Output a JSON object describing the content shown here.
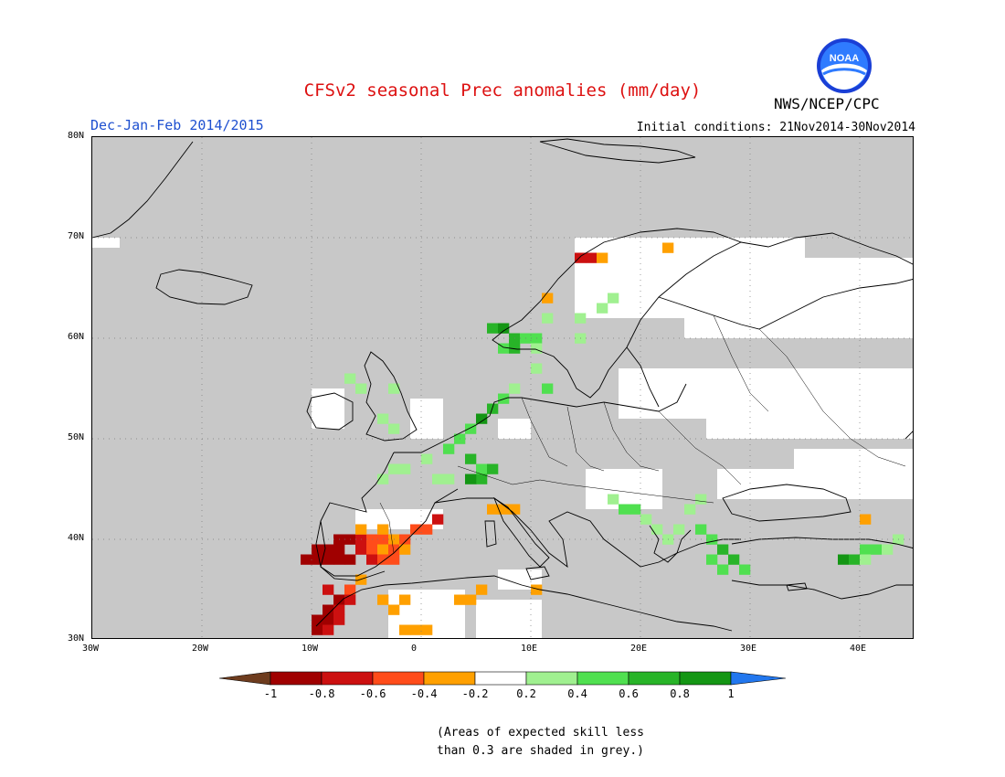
{
  "header": {
    "title": "CFSv2 seasonal Prec anomalies (mm/day)",
    "period": "Dec-Jan-Feb 2014/2015",
    "initial_conditions": "Initial conditions: 21Nov2014-30Nov2014",
    "agency": "NWS/NCEP/CPC",
    "logo_text": "NOAA"
  },
  "map": {
    "extent": {
      "lon_min": -30,
      "lon_max": 45,
      "lat_min": 30,
      "lat_max": 80
    },
    "lat_labels": [
      "80N",
      "70N",
      "60N",
      "50N",
      "40N",
      "30N"
    ],
    "lat_values": [
      80,
      70,
      60,
      50,
      40,
      30
    ],
    "lon_labels": [
      "30W",
      "20W",
      "10W",
      "0",
      "10E",
      "20E",
      "30E",
      "40E"
    ],
    "lon_values": [
      -30,
      -20,
      -10,
      0,
      10,
      20,
      30,
      40
    ],
    "background_color": "#c8c8c8",
    "anomaly_cells": [
      {
        "lon": -10.5,
        "lat": 38,
        "class": "-1"
      },
      {
        "lon": -9.5,
        "lat": 38,
        "class": "-1"
      },
      {
        "lon": -9.5,
        "lat": 39,
        "class": "-1"
      },
      {
        "lon": -8.5,
        "lat": 39,
        "class": "-1"
      },
      {
        "lon": -7.5,
        "lat": 39,
        "class": "-1"
      },
      {
        "lon": -8.5,
        "lat": 38,
        "class": "-1"
      },
      {
        "lon": -7.5,
        "lat": 38,
        "class": "-1"
      },
      {
        "lon": -6.5,
        "lat": 38,
        "class": "-1"
      },
      {
        "lon": -7.5,
        "lat": 40,
        "class": "-1"
      },
      {
        "lon": -6.5,
        "lat": 40,
        "class": "-1"
      },
      {
        "lon": -5.5,
        "lat": 39,
        "class": "-0.8"
      },
      {
        "lon": -5.5,
        "lat": 40,
        "class": "-0.8"
      },
      {
        "lon": -4.5,
        "lat": 40,
        "class": "-0.6"
      },
      {
        "lon": -3.5,
        "lat": 40,
        "class": "-0.6"
      },
      {
        "lon": -2.5,
        "lat": 40,
        "class": "-0.4"
      },
      {
        "lon": -1.5,
        "lat": 40,
        "class": "-0.6"
      },
      {
        "lon": -0.5,
        "lat": 41,
        "class": "-0.6"
      },
      {
        "lon": 0.5,
        "lat": 41,
        "class": "-0.6"
      },
      {
        "lon": 1.5,
        "lat": 42,
        "class": "-0.8"
      },
      {
        "lon": -4.5,
        "lat": 39,
        "class": "-0.6"
      },
      {
        "lon": -3.5,
        "lat": 39,
        "class": "-0.4"
      },
      {
        "lon": -2.5,
        "lat": 39,
        "class": "-0.6"
      },
      {
        "lon": -1.5,
        "lat": 39,
        "class": "-0.4"
      },
      {
        "lon": -4.5,
        "lat": 38,
        "class": "-0.8"
      },
      {
        "lon": -3.5,
        "lat": 38,
        "class": "-0.6"
      },
      {
        "lon": -2.5,
        "lat": 38,
        "class": "-0.6"
      },
      {
        "lon": -5.5,
        "lat": 41,
        "class": "-0.4"
      },
      {
        "lon": -3.5,
        "lat": 41,
        "class": "-0.4"
      },
      {
        "lon": -8.5,
        "lat": 35,
        "class": "-0.8"
      },
      {
        "lon": -7.5,
        "lat": 34,
        "class": "-1"
      },
      {
        "lon": -8.5,
        "lat": 33,
        "class": "-1"
      },
      {
        "lon": -7.5,
        "lat": 33,
        "class": "-0.8"
      },
      {
        "lon": -9.5,
        "lat": 32,
        "class": "-1"
      },
      {
        "lon": -8.5,
        "lat": 32,
        "class": "-1"
      },
      {
        "lon": -9.5,
        "lat": 31,
        "class": "-1"
      },
      {
        "lon": -8.5,
        "lat": 31,
        "class": "-0.8"
      },
      {
        "lon": -7.5,
        "lat": 32,
        "class": "-0.8"
      },
      {
        "lon": -6.5,
        "lat": 35,
        "class": "-0.6"
      },
      {
        "lon": -6.5,
        "lat": 34,
        "class": "-0.8"
      },
      {
        "lon": -5.5,
        "lat": 36,
        "class": "-0.4"
      },
      {
        "lon": -3.5,
        "lat": 34,
        "class": "-0.4"
      },
      {
        "lon": -2.5,
        "lat": 33,
        "class": "-0.4"
      },
      {
        "lon": -1.5,
        "lat": 34,
        "class": "-0.4"
      },
      {
        "lon": -1.5,
        "lat": 31,
        "class": "-0.4"
      },
      {
        "lon": -0.5,
        "lat": 31,
        "class": "-0.4"
      },
      {
        "lon": 0.5,
        "lat": 31,
        "class": "-0.4"
      },
      {
        "lon": 3.5,
        "lat": 34,
        "class": "-0.4"
      },
      {
        "lon": 4.5,
        "lat": 34,
        "class": "-0.4"
      },
      {
        "lon": 5.5,
        "lat": 35,
        "class": "-0.4"
      },
      {
        "lon": 6.5,
        "lat": 43,
        "class": "-0.4"
      },
      {
        "lon": 7.5,
        "lat": 43,
        "class": "-0.4"
      },
      {
        "lon": 8.5,
        "lat": 43,
        "class": "-0.4"
      },
      {
        "lon": 10.5,
        "lat": 35,
        "class": "-0.4"
      },
      {
        "lon": 14.5,
        "lat": 68,
        "class": "-0.8"
      },
      {
        "lon": 15.5,
        "lat": 68,
        "class": "-0.8"
      },
      {
        "lon": 16.5,
        "lat": 68,
        "class": "-0.4"
      },
      {
        "lon": 22.5,
        "lat": 69,
        "class": "-0.4"
      },
      {
        "lon": 11.5,
        "lat": 64,
        "class": "-0.4"
      },
      {
        "lon": 40.5,
        "lat": 42,
        "class": "-0.4"
      },
      {
        "lon": 6.5,
        "lat": 61,
        "class": "0.6"
      },
      {
        "lon": 7.5,
        "lat": 61,
        "class": "0.8"
      },
      {
        "lon": 8.5,
        "lat": 60,
        "class": "0.6"
      },
      {
        "lon": 7.5,
        "lat": 59,
        "class": "0.4"
      },
      {
        "lon": 8.5,
        "lat": 59,
        "class": "0.6"
      },
      {
        "lon": 9.5,
        "lat": 60,
        "class": "0.4"
      },
      {
        "lon": 10.5,
        "lat": 60,
        "class": "0.4"
      },
      {
        "lon": 10.5,
        "lat": 59,
        "class": "0.2"
      },
      {
        "lon": 11.5,
        "lat": 62,
        "class": "0.2"
      },
      {
        "lon": 14.5,
        "lat": 62,
        "class": "0.2"
      },
      {
        "lon": 16.5,
        "lat": 63,
        "class": "0.2"
      },
      {
        "lon": 17.5,
        "lat": 64,
        "class": "0.2"
      },
      {
        "lon": 14.5,
        "lat": 60,
        "class": "0.2"
      },
      {
        "lon": 10.5,
        "lat": 57,
        "class": "0.2"
      },
      {
        "lon": 11.5,
        "lat": 55,
        "class": "0.4"
      },
      {
        "lon": 8.5,
        "lat": 55,
        "class": "0.2"
      },
      {
        "lon": 7.5,
        "lat": 54,
        "class": "0.4"
      },
      {
        "lon": 6.5,
        "lat": 53,
        "class": "0.6"
      },
      {
        "lon": 5.5,
        "lat": 52,
        "class": "0.8"
      },
      {
        "lon": 4.5,
        "lat": 51,
        "class": "0.4"
      },
      {
        "lon": 3.5,
        "lat": 50,
        "class": "0.4"
      },
      {
        "lon": 2.5,
        "lat": 49,
        "class": "0.4"
      },
      {
        "lon": 4.5,
        "lat": 48,
        "class": "0.6"
      },
      {
        "lon": 5.5,
        "lat": 47,
        "class": "0.4"
      },
      {
        "lon": 6.5,
        "lat": 47,
        "class": "0.6"
      },
      {
        "lon": 5.5,
        "lat": 46,
        "class": "0.6"
      },
      {
        "lon": 4.5,
        "lat": 46,
        "class": "0.8"
      },
      {
        "lon": 0.5,
        "lat": 48,
        "class": "0.2"
      },
      {
        "lon": -1.5,
        "lat": 47,
        "class": "0.2"
      },
      {
        "lon": -2.5,
        "lat": 47,
        "class": "0.2"
      },
      {
        "lon": -3.5,
        "lat": 46,
        "class": "0.2"
      },
      {
        "lon": 1.5,
        "lat": 46,
        "class": "0.2"
      },
      {
        "lon": 2.5,
        "lat": 46,
        "class": "0.2"
      },
      {
        "lon": -5.5,
        "lat": 55,
        "class": "0.2"
      },
      {
        "lon": -3.5,
        "lat": 52,
        "class": "0.2"
      },
      {
        "lon": -2.5,
        "lat": 51,
        "class": "0.2"
      },
      {
        "lon": -2.5,
        "lat": 55,
        "class": "0.2"
      },
      {
        "lon": -6.5,
        "lat": 56,
        "class": "0.2"
      },
      {
        "lon": 18.5,
        "lat": 43,
        "class": "0.4"
      },
      {
        "lon": 19.5,
        "lat": 43,
        "class": "0.4"
      },
      {
        "lon": 17.5,
        "lat": 44,
        "class": "0.2"
      },
      {
        "lon": 20.5,
        "lat": 42,
        "class": "0.2"
      },
      {
        "lon": 21.5,
        "lat": 41,
        "class": "0.2"
      },
      {
        "lon": 22.5,
        "lat": 40,
        "class": "0.2"
      },
      {
        "lon": 26.5,
        "lat": 40,
        "class": "0.4"
      },
      {
        "lon": 27.5,
        "lat": 39,
        "class": "0.6"
      },
      {
        "lon": 28.5,
        "lat": 38,
        "class": "0.6"
      },
      {
        "lon": 29.5,
        "lat": 37,
        "class": "0.4"
      },
      {
        "lon": 27.5,
        "lat": 37,
        "class": "0.4"
      },
      {
        "lon": 26.5,
        "lat": 38,
        "class": "0.4"
      },
      {
        "lon": 25.5,
        "lat": 41,
        "class": "0.4"
      },
      {
        "lon": 23.5,
        "lat": 41,
        "class": "0.2"
      },
      {
        "lon": 24.5,
        "lat": 43,
        "class": "0.2"
      },
      {
        "lon": 25.5,
        "lat": 44,
        "class": "0.2"
      },
      {
        "lon": 38.5,
        "lat": 38,
        "class": "0.8"
      },
      {
        "lon": 39.5,
        "lat": 38,
        "class": "0.6"
      },
      {
        "lon": 40.5,
        "lat": 39,
        "class": "0.4"
      },
      {
        "lon": 41.5,
        "lat": 39,
        "class": "0.4"
      },
      {
        "lon": 42.5,
        "lat": 39,
        "class": "0.2"
      },
      {
        "lon": 43.5,
        "lat": 40,
        "class": "0.2"
      },
      {
        "lon": 40.5,
        "lat": 38,
        "class": "0.2"
      }
    ],
    "white_regions": [
      {
        "lon_min": -30,
        "lon_max": -27.5,
        "lat_min": 69,
        "lat_max": 70
      },
      {
        "lon_min": 14,
        "lon_max": 35,
        "lat_min": 62,
        "lat_max": 70
      },
      {
        "lon_min": 24,
        "lon_max": 45,
        "lat_min": 60,
        "lat_max": 68
      },
      {
        "lon_min": 26,
        "lon_max": 45,
        "lat_min": 50,
        "lat_max": 57
      },
      {
        "lon_min": 18,
        "lon_max": 26,
        "lat_min": 52,
        "lat_max": 57
      },
      {
        "lon_min": -3,
        "lon_max": 4,
        "lat_min": 30,
        "lat_max": 35
      },
      {
        "lon_min": 5,
        "lon_max": 11,
        "lat_min": 30,
        "lat_max": 34
      },
      {
        "lon_min": -1,
        "lon_max": 2,
        "lat_min": 50,
        "lat_max": 54
      },
      {
        "lon_min": -10,
        "lon_max": -7,
        "lat_min": 51,
        "lat_max": 55
      },
      {
        "lon_min": 7,
        "lon_max": 10,
        "lat_min": 50,
        "lat_max": 52
      },
      {
        "lon_min": 15,
        "lon_max": 22,
        "lat_min": 43,
        "lat_max": 47
      },
      {
        "lon_min": 27,
        "lon_max": 36,
        "lat_min": 44,
        "lat_max": 47
      },
      {
        "lon_min": 34,
        "lon_max": 45,
        "lat_min": 44,
        "lat_max": 49
      },
      {
        "lon_min": -6,
        "lon_max": 2,
        "lat_min": 41,
        "lat_max": 43
      },
      {
        "lon_min": 7,
        "lon_max": 11,
        "lat_min": 35,
        "lat_max": 37
      }
    ]
  },
  "colorbar": {
    "levels": [
      "-1",
      "-0.8",
      "-0.6",
      "-0.4",
      "-0.2",
      "0.2",
      "0.4",
      "0.6",
      "0.8",
      "1"
    ],
    "colors": {
      "below_-1": "#6e3c1e",
      "-1": "#a00000",
      "-0.8": "#cc1010",
      "-0.6": "#ff4c1a",
      "-0.4": "#ffa000",
      "-0.2": "#ffffff",
      "0.2": "#a0f090",
      "0.4": "#50e050",
      "0.6": "#28b428",
      "0.8": "#149614",
      "above_1": "#2277ee"
    }
  },
  "footnote": {
    "line1": "(Areas of expected skill less",
    "line2": "than 0.3 are shaded in grey.)"
  }
}
